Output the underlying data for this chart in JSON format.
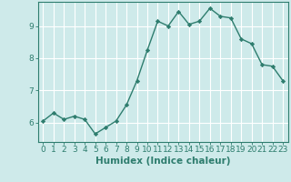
{
  "title": "",
  "xlabel": "Humidex (Indice chaleur)",
  "ylabel": "",
  "x": [
    0,
    1,
    2,
    3,
    4,
    5,
    6,
    7,
    8,
    9,
    10,
    11,
    12,
    13,
    14,
    15,
    16,
    17,
    18,
    19,
    20,
    21,
    22,
    23
  ],
  "y": [
    6.05,
    6.3,
    6.1,
    6.2,
    6.1,
    5.65,
    5.85,
    6.05,
    6.55,
    7.3,
    8.25,
    9.15,
    9.0,
    9.45,
    9.05,
    9.15,
    9.55,
    9.3,
    9.25,
    8.6,
    8.45,
    7.8,
    7.75,
    7.3
  ],
  "ylim": [
    5.4,
    9.75
  ],
  "yticks": [
    6,
    7,
    8,
    9
  ],
  "xticks": [
    0,
    1,
    2,
    3,
    4,
    5,
    6,
    7,
    8,
    9,
    10,
    11,
    12,
    13,
    14,
    15,
    16,
    17,
    18,
    19,
    20,
    21,
    22,
    23
  ],
  "line_color": "#2e7d6e",
  "marker": "D",
  "marker_size": 2.2,
  "bg_color": "#ceeaea",
  "grid_color": "#ffffff",
  "tick_color": "#2e7d6e",
  "label_color": "#2e7d6e",
  "axis_color": "#2e7d6e",
  "xlabel_fontsize": 7.5,
  "tick_fontsize": 6.5,
  "line_width": 1.0
}
